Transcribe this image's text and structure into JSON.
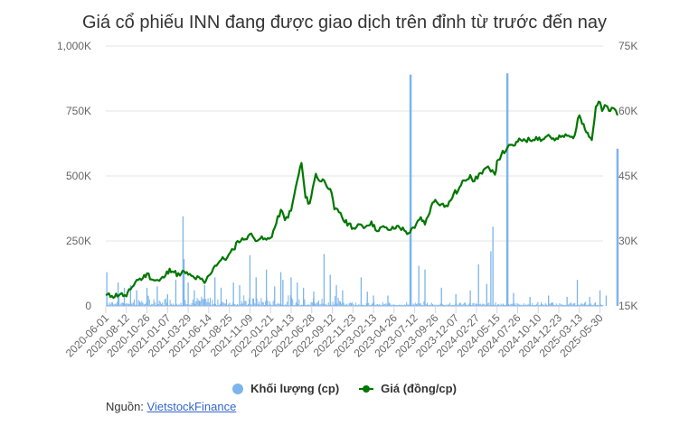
{
  "chart_data": {
    "type": "bar+line",
    "title": "Giá cổ phiếu INN đang được giao dịch trên đỉnh từ trước đến nay",
    "xlabel": "",
    "ylabel_left": "Khối lượng (cp)",
    "ylabel_right": "Giá (đồng/cp)",
    "y_left_ticks": [
      "0",
      "250K",
      "500K",
      "750K",
      "1,000K"
    ],
    "y_left_range": [
      0,
      1000000
    ],
    "y_right_ticks": [
      "15K",
      "30K",
      "45K",
      "60K",
      "75K"
    ],
    "y_right_range": [
      15000,
      75000
    ],
    "grid": true,
    "legend_position": "bottom",
    "x_tick_labels": [
      "2020-06-01",
      "2020-08-12",
      "2020-10-26",
      "2021-01-07",
      "2021-03-29",
      "2021-06-14",
      "2021-08-25",
      "2021-11-09",
      "2022-01-21",
      "2022-04-13",
      "2022-06-28",
      "2022-09-12",
      "2022-11-23",
      "2023-02-13",
      "2023-04-26",
      "2023-07-12",
      "2023-09-26",
      "2023-12-07",
      "2024-02-27",
      "2024-05-15",
      "2024-07-26",
      "2024-10-10",
      "2024-12-23",
      "2025-03-13",
      "2025-05-30"
    ],
    "series": [
      {
        "name": "Giá (đồng/cp)",
        "type": "line",
        "color": "#007700",
        "axis": "right",
        "points": [
          [
            0,
            17500
          ],
          [
            0.3,
            17300
          ],
          [
            0.7,
            17700
          ],
          [
            1.0,
            17200
          ],
          [
            1.2,
            18800
          ],
          [
            1.5,
            21000
          ],
          [
            1.8,
            21400
          ],
          [
            2.0,
            22500
          ],
          [
            2.3,
            21000
          ],
          [
            2.6,
            20800
          ],
          [
            2.9,
            22000
          ],
          [
            3.1,
            23600
          ],
          [
            3.3,
            22800
          ],
          [
            3.6,
            22000
          ],
          [
            3.8,
            23000
          ],
          [
            4.0,
            22200
          ],
          [
            4.3,
            21500
          ],
          [
            4.6,
            21200
          ],
          [
            4.8,
            20300
          ],
          [
            5.0,
            22000
          ],
          [
            5.3,
            24300
          ],
          [
            5.6,
            25600
          ],
          [
            5.9,
            26200
          ],
          [
            6.2,
            28000
          ],
          [
            6.4,
            30000
          ],
          [
            6.7,
            30300
          ],
          [
            7.0,
            31600
          ],
          [
            7.2,
            30600
          ],
          [
            7.5,
            30500
          ],
          [
            7.8,
            30300
          ],
          [
            8.0,
            30700
          ],
          [
            8.2,
            33000
          ],
          [
            8.5,
            37200
          ],
          [
            8.7,
            34800
          ],
          [
            9.0,
            37000
          ],
          [
            9.3,
            44000
          ],
          [
            9.5,
            48000
          ],
          [
            9.7,
            40000
          ],
          [
            9.9,
            38700
          ],
          [
            10.2,
            45500
          ],
          [
            10.4,
            43800
          ],
          [
            10.6,
            44000
          ],
          [
            10.9,
            42000
          ],
          [
            11.1,
            37300
          ],
          [
            11.4,
            36500
          ],
          [
            11.6,
            34300
          ],
          [
            11.8,
            34000
          ],
          [
            12.1,
            32800
          ],
          [
            12.4,
            33800
          ],
          [
            12.6,
            33200
          ],
          [
            12.9,
            34500
          ],
          [
            13.1,
            32500
          ],
          [
            13.4,
            33200
          ],
          [
            13.7,
            32600
          ],
          [
            14.0,
            32800
          ],
          [
            14.2,
            33500
          ],
          [
            14.5,
            32400
          ],
          [
            14.7,
            31800
          ],
          [
            15.0,
            33000
          ],
          [
            15.3,
            35500
          ],
          [
            15.5,
            33800
          ],
          [
            15.8,
            38000
          ],
          [
            16.0,
            39500
          ],
          [
            16.3,
            38500
          ],
          [
            16.6,
            38000
          ],
          [
            16.9,
            41000
          ],
          [
            17.1,
            41500
          ],
          [
            17.4,
            44000
          ],
          [
            17.7,
            45200
          ],
          [
            17.9,
            43800
          ],
          [
            18.2,
            45700
          ],
          [
            18.5,
            47000
          ],
          [
            18.7,
            46000
          ],
          [
            18.9,
            45300
          ],
          [
            19.0,
            48500
          ],
          [
            19.2,
            49800
          ],
          [
            19.5,
            51500
          ],
          [
            19.8,
            52000
          ],
          [
            20.0,
            52900
          ],
          [
            20.3,
            53500
          ],
          [
            20.6,
            53200
          ],
          [
            20.9,
            54000
          ],
          [
            21.2,
            53400
          ],
          [
            21.5,
            54500
          ],
          [
            21.8,
            53200
          ],
          [
            22.1,
            54000
          ],
          [
            22.4,
            54300
          ],
          [
            22.7,
            53700
          ],
          [
            23.0,
            59000
          ],
          [
            23.2,
            57000
          ],
          [
            23.4,
            55000
          ],
          [
            23.6,
            53300
          ],
          [
            23.8,
            61000
          ],
          [
            24.0,
            62000
          ],
          [
            24.1,
            60000
          ],
          [
            24.3,
            61200
          ],
          [
            24.5,
            60000
          ],
          [
            24.7,
            60500
          ],
          [
            24.85,
            59000
          ]
        ]
      },
      {
        "name": "Khối lượng (cp)",
        "type": "bar",
        "color": "#7cb5ec",
        "axis": "left",
        "spikes": [
          [
            0.05,
            130000
          ],
          [
            0.6,
            90000
          ],
          [
            0.9,
            70000
          ],
          [
            1.2,
            80000
          ],
          [
            1.5,
            60000
          ],
          [
            2.0,
            70000
          ],
          [
            2.5,
            75000
          ],
          [
            3.0,
            45000
          ],
          [
            3.4,
            100000
          ],
          [
            3.75,
            345000
          ],
          [
            3.8,
            180000
          ],
          [
            4.0,
            90000
          ],
          [
            4.3,
            60000
          ],
          [
            4.8,
            80000
          ],
          [
            5.3,
            110000
          ],
          [
            5.6,
            70000
          ],
          [
            6.2,
            90000
          ],
          [
            6.5,
            80000
          ],
          [
            7.0,
            195000
          ],
          [
            7.3,
            110000
          ],
          [
            7.8,
            140000
          ],
          [
            8.2,
            75000
          ],
          [
            8.5,
            130000
          ],
          [
            8.6,
            100000
          ],
          [
            9.0,
            110000
          ],
          [
            9.3,
            90000
          ],
          [
            9.6,
            70000
          ],
          [
            10.1,
            55000
          ],
          [
            10.6,
            200000
          ],
          [
            10.9,
            120000
          ],
          [
            11.2,
            80000
          ],
          [
            11.5,
            60000
          ],
          [
            12.4,
            110000
          ],
          [
            12.7,
            55000
          ],
          [
            13.0,
            40000
          ],
          [
            13.7,
            40000
          ],
          [
            14.8,
            890000
          ],
          [
            15.2,
            155000
          ],
          [
            15.5,
            140000
          ],
          [
            16.3,
            70000
          ],
          [
            17.0,
            45000
          ],
          [
            17.7,
            60000
          ],
          [
            18.1,
            160000
          ],
          [
            18.5,
            85000
          ],
          [
            18.7,
            210000
          ],
          [
            18.8,
            305000
          ],
          [
            19.5,
            895000
          ],
          [
            19.8,
            50000
          ],
          [
            20.6,
            35000
          ],
          [
            21.5,
            40000
          ],
          [
            22.4,
            35000
          ],
          [
            22.9,
            100000
          ],
          [
            23.5,
            35000
          ],
          [
            24.0,
            60000
          ],
          [
            24.3,
            40000
          ],
          [
            24.85,
            605000
          ]
        ]
      }
    ]
  },
  "header": {
    "title": "Giá cổ phiếu INN đang được giao dịch trên đỉnh từ trước đến nay"
  },
  "legend": {
    "volume_label": "Khối lượng (cp)",
    "price_label": "Giá (đồng/cp)"
  },
  "source": {
    "prefix": "Nguồn: ",
    "link_text": "VietstockFinance"
  },
  "colors": {
    "volume": "#7cb5ec",
    "price": "#007700",
    "grid": "#e6e6e6",
    "axis_text": "#666666"
  }
}
